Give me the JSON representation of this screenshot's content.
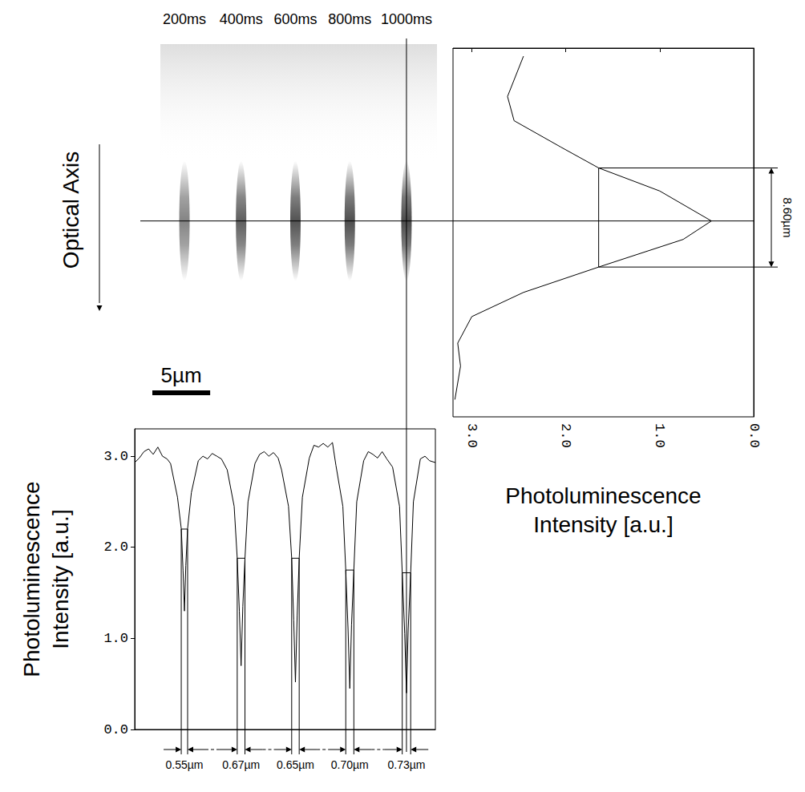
{
  "chart_data": [
    {
      "type": "line",
      "ylabel": "Photoluminescence Intensity [a.u.]",
      "x": [
        0,
        0.4,
        0.8,
        1.2,
        1.6,
        2.0,
        2.4,
        2.8,
        3.1,
        3.7,
        4.03,
        4.18,
        4.3,
        4.42,
        4.57,
        4.9,
        5.5,
        5.9,
        6.3,
        6.7,
        7.1,
        7.5,
        8.0,
        8.6,
        8.865,
        9.05,
        9.2,
        9.35,
        9.535,
        9.8,
        10.4,
        10.8,
        11.2,
        11.6,
        12.0,
        12.4,
        12.7,
        13.3,
        13.575,
        13.75,
        13.9,
        14.05,
        14.225,
        14.5,
        15.1,
        15.5,
        15.9,
        16.3,
        16.7,
        17.1,
        17.4,
        18.0,
        18.25,
        18.45,
        18.6,
        18.75,
        18.95,
        19.2,
        19.8,
        20.2,
        20.6,
        21.0,
        21.4,
        21.8,
        22.3,
        22.9,
        23.135,
        23.35,
        23.5,
        23.65,
        23.865,
        24.1,
        24.7,
        25.1,
        25.5,
        26.0
      ],
      "values": [
        2.93,
        2.98,
        3.05,
        3.08,
        3.02,
        3.1,
        3.0,
        2.97,
        2.92,
        2.55,
        2.2,
        1.75,
        1.3,
        1.8,
        2.2,
        2.6,
        2.95,
        3.0,
        2.97,
        3.03,
        3.0,
        2.97,
        2.85,
        2.45,
        1.88,
        1.3,
        0.7,
        1.35,
        1.88,
        2.5,
        2.92,
        3.02,
        3.05,
        3.0,
        3.04,
        2.98,
        2.85,
        2.45,
        1.88,
        1.2,
        0.52,
        1.25,
        1.88,
        2.55,
        2.98,
        3.12,
        3.1,
        3.14,
        3.1,
        3.15,
        2.9,
        2.45,
        1.75,
        1.1,
        0.45,
        1.15,
        1.75,
        2.5,
        2.95,
        3.05,
        3.02,
        2.98,
        3.05,
        2.97,
        2.88,
        2.45,
        1.72,
        1.05,
        0.4,
        1.1,
        1.72,
        2.5,
        2.97,
        3.0,
        2.95,
        2.93
      ],
      "xlim": [
        0,
        26
      ],
      "ylim": [
        0,
        3.3
      ],
      "yticks": [
        {
          "value": 0,
          "label": "0.0"
        },
        {
          "value": 1,
          "label": "1.0"
        },
        {
          "value": 2,
          "label": "2.0"
        },
        {
          "value": 3,
          "label": "3.0"
        }
      ],
      "tick_labels": "y",
      "dips": [
        {
          "center": 4.3,
          "half_max": 2.2,
          "width": 0.55,
          "label": "0.55µm"
        },
        {
          "center": 9.2,
          "half_max": 1.88,
          "width": 0.67,
          "label": "0.67µm"
        },
        {
          "center": 13.9,
          "half_max": 1.88,
          "width": 0.65,
          "label": "0.65µm"
        },
        {
          "center": 18.6,
          "half_max": 1.75,
          "width": 0.7,
          "label": "0.70µm"
        },
        {
          "center": 23.5,
          "half_max": 1.72,
          "width": 0.73,
          "label": "0.73µm"
        }
      ]
    },
    {
      "type": "line",
      "xlabel": "Photoluminescence Intensity [a.u.]",
      "x": [
        2.45,
        2.62,
        2.55,
        2.05,
        1.65,
        1.0,
        0.45,
        0.75,
        1.65,
        2.45,
        3.0,
        3.15,
        3.12,
        3.18
      ],
      "y": [
        0.7,
        4.2,
        6.3,
        8.6,
        10.4,
        12.4,
        15.0,
        16.6,
        19.0,
        21.2,
        23.3,
        25.6,
        27.6,
        30.5
      ],
      "xlim": [
        3.2,
        0
      ],
      "ylim": [
        32,
        0
      ],
      "xticks": [
        {
          "value": 3,
          "label": "3.0"
        },
        {
          "value": 2,
          "label": "2.0"
        },
        {
          "value": 1,
          "label": "1.0"
        },
        {
          "value": 0,
          "label": "0.0"
        }
      ],
      "tick_labels": "x",
      "fwhm": {
        "half_max": 1.65,
        "from": 10.4,
        "to": 19.0,
        "label": "8.60µm"
      }
    }
  ],
  "image": {
    "times": [
      "200ms",
      "400ms",
      "600ms",
      "800ms",
      "1000ms"
    ],
    "spot_x": [
      4.3,
      9.2,
      13.9,
      18.6,
      23.5
    ],
    "profile_row": 15.0,
    "profile_column": 23.5,
    "annotation": "Optical Axis",
    "scale_bar": {
      "length": 5,
      "label": "5µm"
    }
  }
}
